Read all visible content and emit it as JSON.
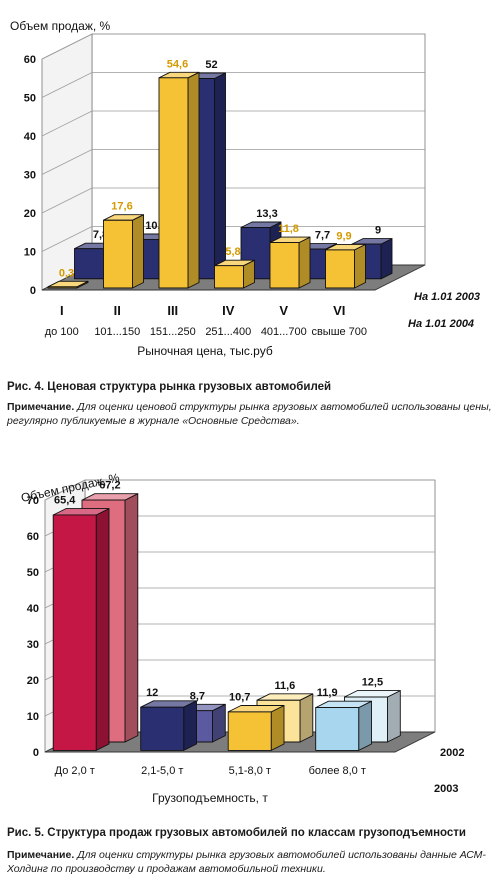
{
  "figure1": {
    "caption": "Рис. 4. Ценовая структура рынка грузовых автомобилей",
    "note_lead": "Примечание.",
    "note_text": "Для оценки ценовой структуры рынка грузовых автомобилей использованы цены, регулярно публикуемые в журнале «Основные Средства».",
    "chart_data": {
      "type": "bar",
      "title": "",
      "ylabel": "Объем продаж, %",
      "xlabel": "Рыночная цена, тыс.руб",
      "ylim": [
        0,
        60
      ],
      "yticks": [
        0,
        10,
        20,
        30,
        40,
        50,
        60
      ],
      "categories": [
        "I",
        "II",
        "III",
        "IV",
        "V",
        "VI"
      ],
      "sublabels": [
        "до 100",
        "101...150",
        "151...250",
        "251...400",
        "401...700",
        "свыше 700"
      ],
      "series": [
        {
          "name": "На 1.01 2004",
          "color": "#f5c235",
          "values": [
            0.3,
            17.6,
            54.6,
            5.8,
            11.8,
            9.9
          ],
          "labels": [
            "0,3",
            "17,6",
            "54,6",
            "5,8",
            "11,8",
            "9,9"
          ]
        },
        {
          "name": "На 1.01 2003",
          "color": "#2a2f72",
          "values": [
            7.8,
            10.2,
            52,
            13.3,
            7.7,
            9
          ],
          "labels": [
            "7,8",
            "10,2",
            "52",
            "13,3",
            "7,7",
            "9"
          ]
        }
      ],
      "grid": true
    }
  },
  "figure2": {
    "caption": "Рис. 5. Структура продаж грузовых автомобилей по классам грузоподъемности",
    "note_lead": "Примечание.",
    "note_text": "Для оценки структуры рынка грузовых автомобилей использованы данные АСМ-Холдинг по производству и продажам автомобильной техники.",
    "chart_data": {
      "type": "bar",
      "title": "",
      "ylabel": "Объем продаж, %",
      "xlabel": "Грузоподъемность, т",
      "ylim": [
        0,
        70
      ],
      "yticks": [
        0,
        10,
        20,
        30,
        40,
        50,
        60,
        70
      ],
      "categories": [
        "До 2,0 т",
        "2,1-5,0 т",
        "5,1-8,0 т",
        "более 8,0 т"
      ],
      "series": [
        {
          "name": "2003",
          "values": [
            65.4,
            12,
            10.7,
            11.9
          ],
          "labels": [
            "65,4",
            "12",
            "10,7",
            "11,9"
          ],
          "colors": [
            "#c41745",
            "#2a2f72",
            "#f5c235",
            "#a9d6ef"
          ]
        },
        {
          "name": "2002",
          "values": [
            67.2,
            8.7,
            11.6,
            12.5
          ],
          "labels": [
            "67,2",
            "8,7",
            "11,6",
            "12,5"
          ],
          "colors": [
            "#de6d80",
            "#5b5aa0",
            "#fbe49a",
            "#dff0f7"
          ]
        }
      ],
      "grid": true
    }
  }
}
